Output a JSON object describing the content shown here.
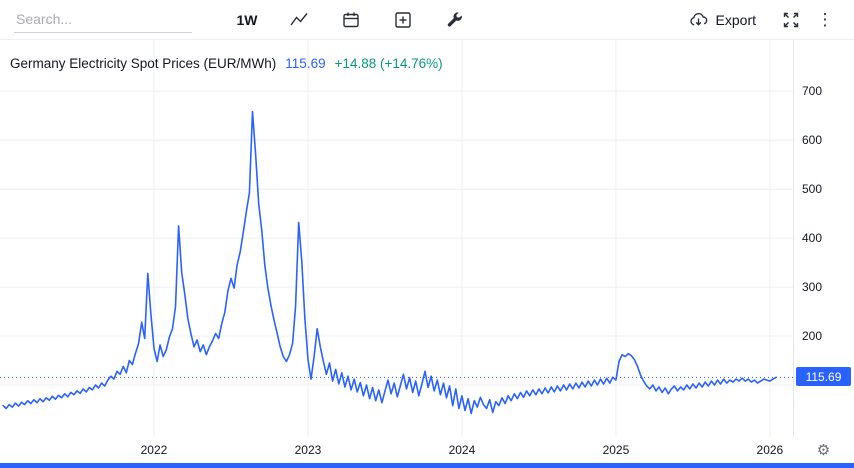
{
  "colors": {
    "accent": "#2962ff",
    "positive": "#089981",
    "axis_text": "#131722",
    "grid": "#edeff3",
    "price_tag_bg": "#2962ff"
  },
  "icons": {
    "kebab": "⋮",
    "gear": "⚙"
  },
  "toolbar": {
    "search_placeholder": "Search...",
    "interval_label": "1W",
    "export_label": "Export"
  },
  "header": {
    "title": "Germany Electricity Spot Prices (EUR/MWh)",
    "value": "115.69",
    "change": "+14.88 (+14.76%)"
  },
  "chart_data": {
    "type": "line",
    "title": "Germany Electricity Spot Prices (EUR/MWh)",
    "series_name": "Germany Electricity Spot Price",
    "unit": "EUR/MWh",
    "interval": "1W",
    "legend_position": "top-left",
    "axis_side": "right",
    "grid": true,
    "grid_color": "#edeff3",
    "line_color": "#2962ff",
    "last_value": 115.69,
    "last_change": "+14.88",
    "last_change_pct": "+14.76%",
    "xlim": [
      2021.0,
      2026.15
    ],
    "ylim": [
      0,
      780
    ],
    "x_ticks": [
      2022,
      2023,
      2024,
      2025,
      2026
    ],
    "y_grid": [
      100,
      200,
      300,
      400,
      500,
      600,
      700
    ],
    "y_tick_labels": [
      200,
      300,
      400,
      500,
      600,
      700
    ],
    "x_start": 2021.02,
    "x_step": 0.02,
    "values": [
      58,
      52,
      60,
      55,
      63,
      57,
      65,
      60,
      68,
      62,
      70,
      64,
      72,
      66,
      74,
      69,
      77,
      71,
      79,
      74,
      82,
      76,
      85,
      80,
      88,
      83,
      92,
      86,
      95,
      90,
      100,
      94,
      104,
      98,
      110,
      118,
      112,
      128,
      122,
      138,
      125,
      150,
      142,
      165,
      185,
      228,
      195,
      328,
      245,
      175,
      148,
      182,
      158,
      172,
      198,
      215,
      260,
      425,
      330,
      285,
      235,
      205,
      178,
      192,
      168,
      182,
      162,
      178,
      190,
      205,
      195,
      225,
      248,
      292,
      318,
      298,
      345,
      372,
      412,
      455,
      492,
      658,
      572,
      470,
      415,
      345,
      298,
      262,
      232,
      205,
      178,
      158,
      148,
      162,
      185,
      262,
      432,
      352,
      235,
      152,
      112,
      158,
      215,
      178,
      148,
      122,
      145,
      108,
      132,
      102,
      125,
      96,
      118,
      90,
      112,
      86,
      105,
      78,
      100,
      72,
      95,
      68,
      90,
      64,
      88,
      110,
      82,
      104,
      76,
      98,
      122,
      92,
      115,
      85,
      108,
      78,
      102,
      128,
      95,
      118,
      88,
      110,
      80,
      104,
      74,
      98,
      58,
      92,
      52,
      78,
      48,
      72,
      42,
      68,
      55,
      75,
      60,
      52,
      70,
      44,
      66,
      58,
      74,
      62,
      78,
      68,
      82,
      72,
      85,
      75,
      88,
      78,
      90,
      80,
      92,
      82,
      94,
      84,
      96,
      86,
      98,
      88,
      100,
      90,
      102,
      92,
      104,
      94,
      106,
      96,
      108,
      98,
      110,
      100,
      112,
      102,
      114,
      104,
      116,
      110,
      148,
      162,
      158,
      164,
      160,
      152,
      138,
      120,
      108,
      98,
      92,
      100,
      88,
      96,
      85,
      94,
      82,
      92,
      98,
      88,
      96,
      90,
      100,
      92,
      102,
      94,
      104,
      96,
      106,
      98,
      108,
      100,
      110,
      102,
      112,
      104,
      110,
      106,
      112,
      108,
      114,
      108,
      112,
      106,
      110,
      104,
      108,
      112,
      110,
      108,
      112,
      115.69
    ]
  }
}
